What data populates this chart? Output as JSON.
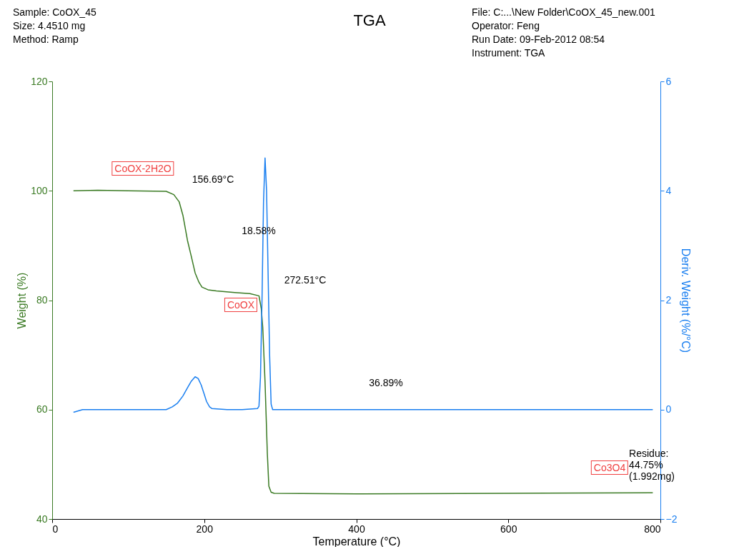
{
  "chart_data": {
    "type": "line",
    "title": "TGA",
    "xlabel": "Temperature (°C)",
    "ylabel": "Weight (%)",
    "y2label": "Deriv. Weight (%/°C)",
    "xlim": [
      0,
      800
    ],
    "xticks": [
      0,
      200,
      400,
      600,
      800
    ],
    "ylim": [
      40,
      120
    ],
    "yticks": [
      40,
      60,
      80,
      100,
      120
    ],
    "y2lim": [
      -2,
      6
    ],
    "y2ticks": [
      -2,
      0,
      2,
      4,
      6
    ],
    "grid": false,
    "series": [
      {
        "color": "#3a7a23",
        "x": [
          28,
          60,
          100,
          150,
          160,
          167,
          172,
          178,
          183,
          188,
          193,
          197,
          205,
          216,
          240,
          260,
          272,
          275,
          277,
          280,
          283,
          285,
          288,
          292,
          400,
          600,
          790
        ],
        "values": [
          100,
          100.1,
          100,
          99.9,
          99.3,
          98,
          95.5,
          90.9,
          88,
          85,
          83.3,
          82.4,
          81.9,
          81.7,
          81.4,
          81.2,
          80.8,
          78.5,
          75,
          65,
          52,
          46,
          44.9,
          44.7,
          44.6,
          44.7,
          44.8
        ]
      },
      {
        "color": "#1a7ff0",
        "axis": "y2",
        "x": [
          28,
          40,
          100,
          150,
          158,
          165,
          172,
          178,
          183,
          188,
          192,
          196,
          200,
          203,
          207,
          210,
          230,
          250,
          270,
          272,
          274,
          276,
          278,
          280,
          282,
          284,
          286,
          288,
          290,
          400,
          600,
          790
        ],
        "values": [
          -0.05,
          0,
          0,
          0,
          0.05,
          0.12,
          0.25,
          0.4,
          0.52,
          0.6,
          0.57,
          0.45,
          0.28,
          0.15,
          0.05,
          0.02,
          0,
          0,
          0.02,
          0.06,
          0.6,
          2,
          3.8,
          4.6,
          4,
          2.5,
          1,
          0.1,
          0,
          0,
          0,
          0
        ]
      }
    ],
    "annotations": [
      "Sample: CoOX_45",
      "Size:  4.4510 mg",
      "Method: Ramp",
      "File: C:...\\New Folder\\CoOX_45_new.001",
      "Operator: Feng",
      "Run Date: 09-Feb-2012 08:54",
      "Instrument: TGA",
      "CoOX-2H2O",
      "156.69°C",
      "18.58%",
      "CoOX",
      "272.51°C",
      "36.89%",
      "Co3O4",
      "Residue:\n44.75%\n(1.992mg)"
    ]
  }
}
